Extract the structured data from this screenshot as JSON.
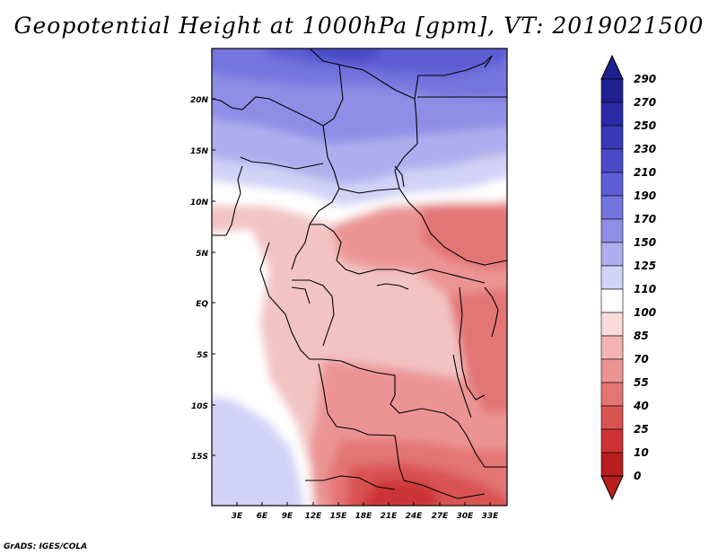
{
  "title": "Geopotential Height at 1000hPa [gpm], VT: 2019021500",
  "credit": "GrADS: IGES/COLA",
  "map": {
    "lat_labels": [
      "20N",
      "15N",
      "10N",
      "5N",
      "EQ",
      "5S",
      "10S",
      "15S"
    ],
    "lon_labels": [
      "3E",
      "6E",
      "9E",
      "12E",
      "15E",
      "18E",
      "21E",
      "24E",
      "27E",
      "30E",
      "33E"
    ]
  },
  "colorbar": {
    "labels": [
      "290",
      "270",
      "250",
      "230",
      "210",
      "190",
      "170",
      "150",
      "125",
      "110",
      "100",
      "85",
      "70",
      "55",
      "40",
      "25",
      "10",
      "0"
    ],
    "colors": [
      "#1f1f8f",
      "#2b2ba6",
      "#3a3ab8",
      "#4a4ac8",
      "#5d5dd4",
      "#7474de",
      "#8e8ee6",
      "#aeaeee",
      "#d2d2f7",
      "#ffffff",
      "#fbdada",
      "#f4b3b3",
      "#ec9494",
      "#e37575",
      "#d95252",
      "#cc3434",
      "#b81e1e"
    ]
  }
}
